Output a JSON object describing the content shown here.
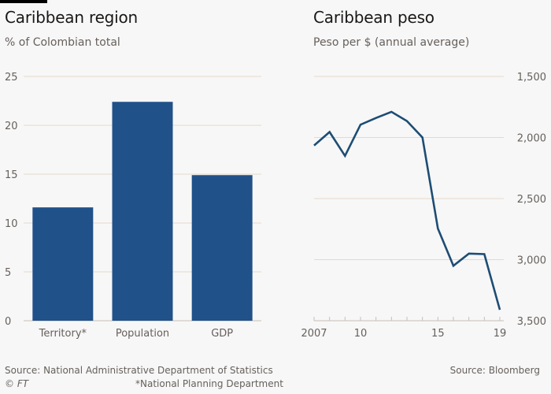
{
  "colors": {
    "background": "#f7f7f7",
    "bar": "#205189",
    "line": "#1d4d74",
    "grid": "#e6d9ce",
    "text": "#66605c"
  },
  "left_chart": {
    "title": "Caribbean region",
    "subtitle": "% of Colombian total",
    "source": "Source: National Administrative Department of Statistics",
    "footnote": "*National Planning Department",
    "copyright": "© FT"
  },
  "right_chart": {
    "title": "Caribbean peso",
    "subtitle": "Peso per $ (annual average)",
    "source": "Source: Bloomberg"
  },
  "chart_data": [
    {
      "type": "bar",
      "title": "Caribbean region",
      "subtitle": "% of Colombian total",
      "xlabel": "",
      "ylabel": "% of Colombian total",
      "categories": [
        "Territory*",
        "Population",
        "GDP"
      ],
      "values": [
        11.6,
        22.4,
        14.9
      ],
      "ylim": [
        0,
        25
      ],
      "yticks": [
        0,
        5,
        10,
        15,
        20,
        25
      ],
      "ytick_labels": [
        "0",
        "5",
        "10",
        "15",
        "20",
        "25"
      ],
      "grid": true,
      "legend": "none"
    },
    {
      "type": "line",
      "title": "Caribbean peso",
      "subtitle": "Peso per $ (annual average)",
      "xlabel": "",
      "ylabel": "Peso per $",
      "x": [
        2007,
        2008,
        2009,
        2010,
        2011,
        2012,
        2013,
        2014,
        2015,
        2016,
        2017,
        2018,
        2019
      ],
      "series": [
        {
          "name": "Peso per $",
          "values": [
            2065,
            1955,
            2150,
            1895,
            1840,
            1790,
            1865,
            2000,
            2745,
            3050,
            2950,
            2955,
            3410
          ]
        }
      ],
      "xlim": [
        2007,
        2019
      ],
      "ylim": [
        1500,
        3500
      ],
      "y_inverted": true,
      "y_axis_side": "right",
      "xticks": [
        2007,
        2008,
        2009,
        2010,
        2011,
        2012,
        2013,
        2014,
        2015,
        2016,
        2017,
        2018,
        2019
      ],
      "xtick_labels": [
        {
          "x": 2007,
          "label": "2007"
        },
        {
          "x": 2010,
          "label": "10"
        },
        {
          "x": 2015,
          "label": "15"
        },
        {
          "x": 2019,
          "label": "19"
        }
      ],
      "yticks": [
        1500,
        2000,
        2500,
        3000,
        3500
      ],
      "ytick_labels": [
        "1,500",
        "2,000",
        "2,500",
        "3,000",
        "3,500"
      ],
      "grid": true,
      "legend": "none"
    }
  ]
}
